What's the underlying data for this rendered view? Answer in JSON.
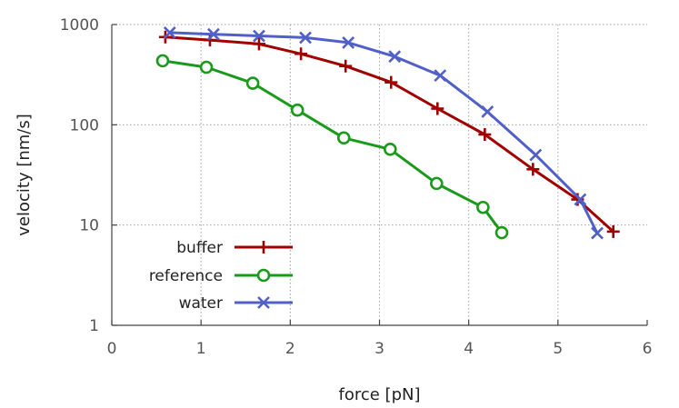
{
  "chart_data": {
    "type": "line",
    "title": "",
    "xlabel": "force [pN]",
    "ylabel": "velocity [nm/s]",
    "xlim": [
      0,
      6
    ],
    "ylim": [
      1,
      1000
    ],
    "yscale": "log",
    "grid": true,
    "legend_position": "bottom-left",
    "x_ticks": [
      "0",
      "1",
      "2",
      "3",
      "4",
      "5",
      "6"
    ],
    "y_ticks": [
      "1",
      "10",
      "100",
      "1000"
    ],
    "series": [
      {
        "name": "buffer",
        "color": "#a00000",
        "marker": "plus",
        "x": [
          0.6,
          1.1,
          1.65,
          2.12,
          2.62,
          3.13,
          3.65,
          4.18,
          4.72,
          5.22,
          5.62
        ],
        "y": [
          750,
          700,
          640,
          510,
          385,
          265,
          145,
          80,
          36,
          18,
          8.6
        ]
      },
      {
        "name": "reference",
        "color": "#1a9a1a",
        "marker": "circle",
        "x": [
          0.57,
          1.06,
          1.58,
          2.08,
          2.6,
          3.12,
          3.64,
          4.16,
          4.37
        ],
        "y": [
          435,
          375,
          260,
          140,
          74,
          57,
          26,
          15,
          8.4
        ]
      },
      {
        "name": "water",
        "color": "#5060c8",
        "marker": "cross",
        "x": [
          0.65,
          1.14,
          1.65,
          2.17,
          2.65,
          3.17,
          3.68,
          4.21,
          4.75,
          5.25,
          5.44
        ],
        "y": [
          830,
          800,
          770,
          740,
          660,
          480,
          310,
          135,
          50,
          18,
          8.3
        ]
      }
    ]
  }
}
